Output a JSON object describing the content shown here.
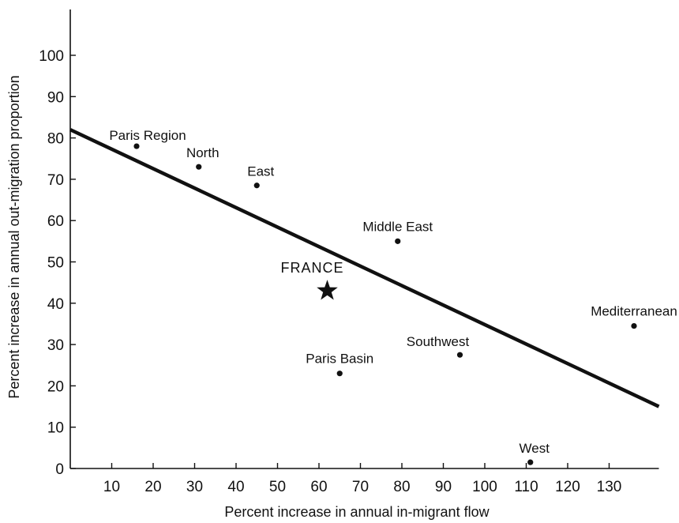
{
  "chart_data": {
    "type": "scatter",
    "title": "",
    "xlabel": "Percent increase in annual in-migrant flow",
    "ylabel": "Percent increase in annual out-migration proportion",
    "xlim": [
      0,
      142
    ],
    "ylim": [
      0,
      112
    ],
    "x_ticks": [
      10,
      20,
      30,
      40,
      50,
      60,
      70,
      80,
      90,
      100,
      110,
      120,
      130
    ],
    "y_ticks": [
      0,
      10,
      20,
      30,
      40,
      50,
      60,
      70,
      80,
      90,
      100
    ],
    "grid": false,
    "legend": "none",
    "points": [
      {
        "label": "Paris Region",
        "x": 16,
        "y": 78
      },
      {
        "label": "North",
        "x": 31,
        "y": 73
      },
      {
        "label": "East",
        "x": 45,
        "y": 68.5
      },
      {
        "label": "Middle East",
        "x": 79,
        "y": 55
      },
      {
        "label": "Mediterranean",
        "x": 136,
        "y": 34.5
      },
      {
        "label": "Southwest",
        "x": 94,
        "y": 27.5
      },
      {
        "label": "Paris Basin",
        "x": 65,
        "y": 23
      },
      {
        "label": "West",
        "x": 111,
        "y": 1.5
      }
    ],
    "highlight": {
      "label": "FRANCE",
      "x": 62,
      "y": 43,
      "marker": "star"
    },
    "trend_line": {
      "x": [
        0,
        142
      ],
      "y": [
        82,
        15
      ]
    },
    "colors": {
      "ink": "#111111",
      "background": "#ffffff"
    }
  }
}
